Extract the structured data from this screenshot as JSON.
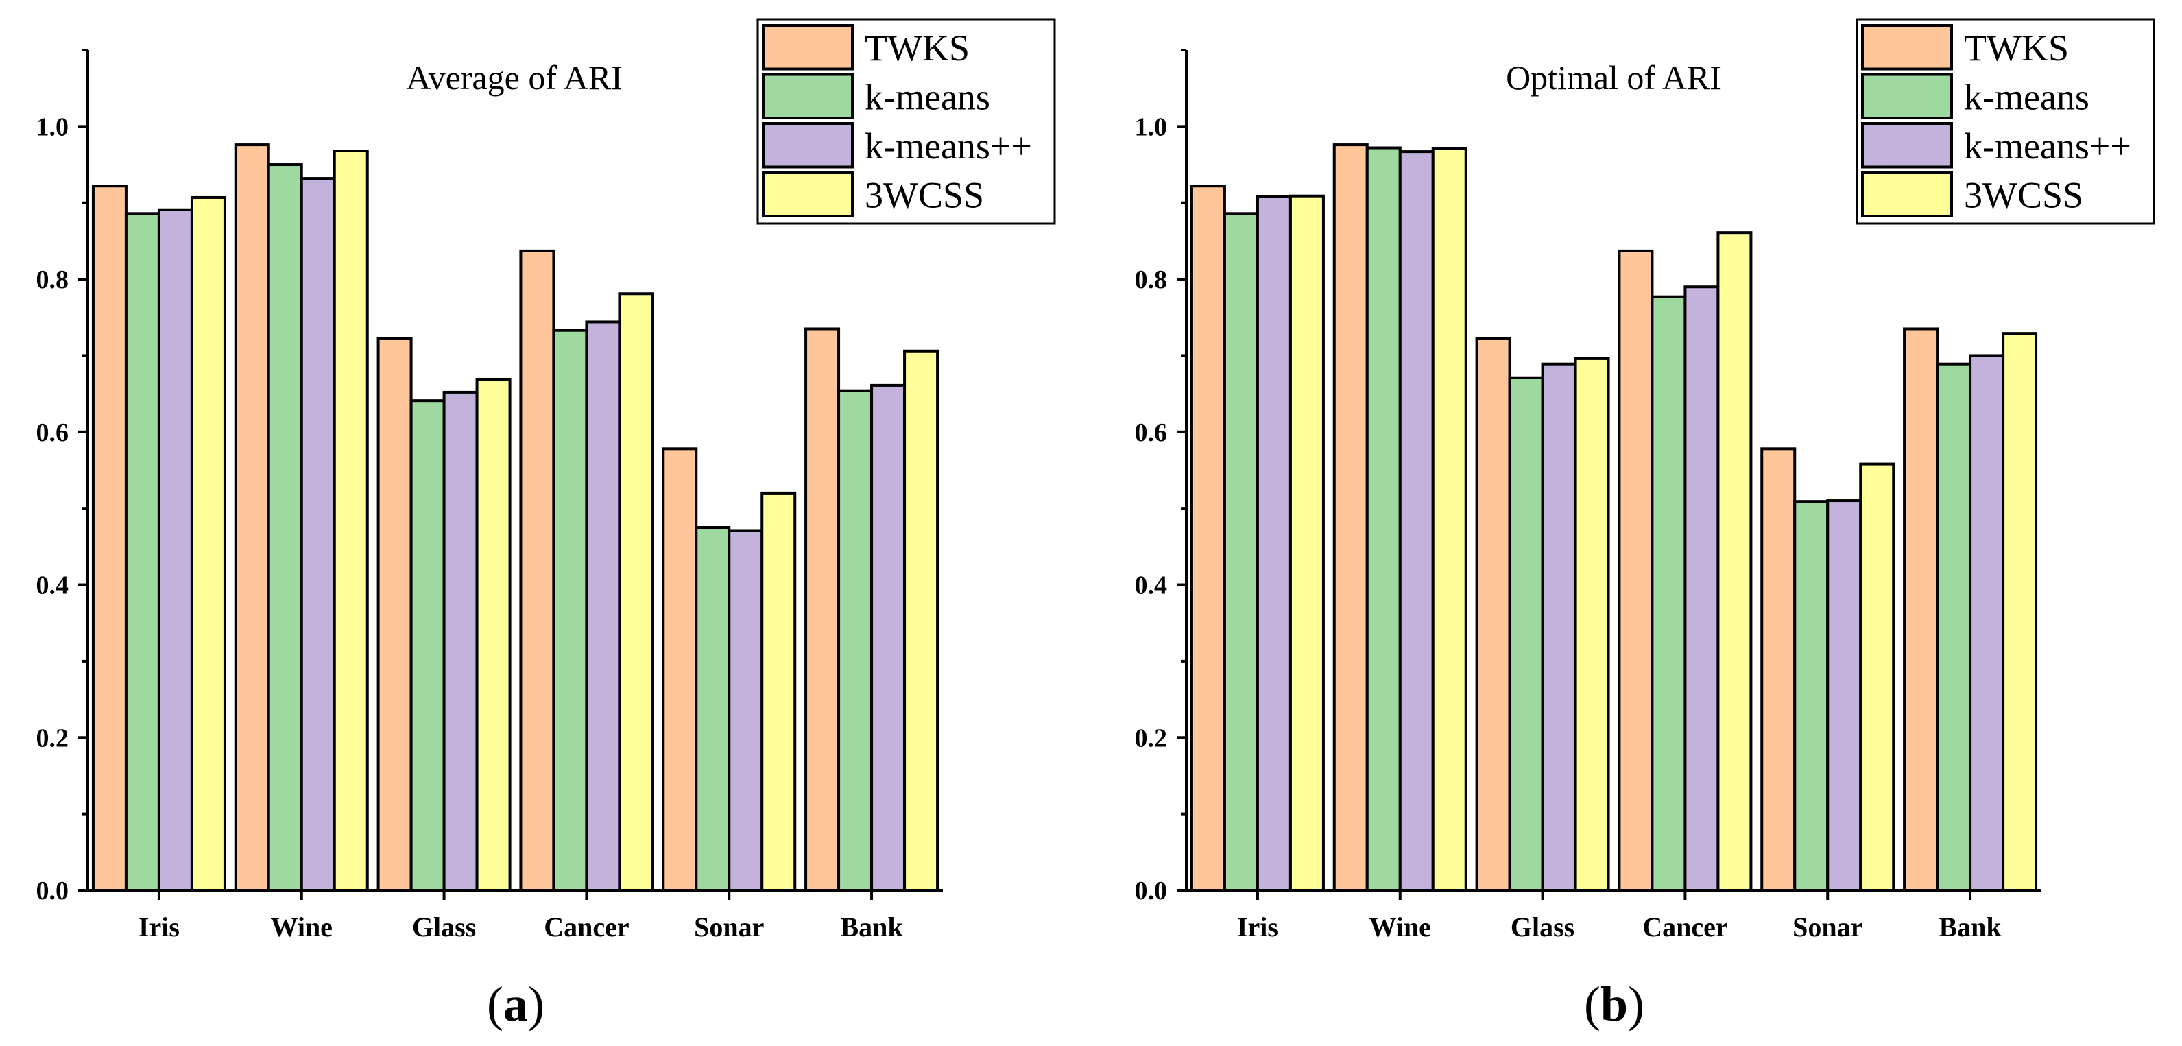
{
  "figure": {
    "captions": [
      "(a)",
      "(b)"
    ]
  },
  "colors": {
    "TWKS": "#FFC799",
    "k-means": "#9ED9A0",
    "k-means++": "#C3B2DB",
    "3WCSS": "#FFFF99",
    "stroke": "#000000"
  },
  "chart_data": [
    {
      "type": "bar",
      "title": "Average of ARI",
      "caption_letter": "a",
      "categories": [
        "Iris",
        "Wine",
        "Glass",
        "Cancer",
        "Sonar",
        "Bank"
      ],
      "series": [
        {
          "name": "TWKS",
          "values": [
            0.922,
            0.976,
            0.722,
            0.837,
            0.578,
            0.735
          ]
        },
        {
          "name": "k-means",
          "values": [
            0.886,
            0.95,
            0.641,
            0.733,
            0.475,
            0.654
          ]
        },
        {
          "name": "k-means++",
          "values": [
            0.891,
            0.932,
            0.652,
            0.744,
            0.471,
            0.661
          ]
        },
        {
          "name": "3WCSS",
          "values": [
            0.907,
            0.968,
            0.669,
            0.781,
            0.52,
            0.706
          ]
        }
      ],
      "xlabel": "",
      "ylabel": "",
      "ylim": [
        0,
        1.1
      ],
      "yticks": [
        "0.0",
        "0.2",
        "0.4",
        "0.6",
        "0.8",
        "1.0"
      ],
      "legend_position": "top-right",
      "grid": false
    },
    {
      "type": "bar",
      "title": "Optimal of ARI",
      "caption_letter": "b",
      "categories": [
        "Iris",
        "Wine",
        "Glass",
        "Cancer",
        "Sonar",
        "Bank"
      ],
      "series": [
        {
          "name": "TWKS",
          "values": [
            0.922,
            0.976,
            0.722,
            0.837,
            0.578,
            0.735
          ]
        },
        {
          "name": "k-means",
          "values": [
            0.886,
            0.972,
            0.671,
            0.777,
            0.509,
            0.689
          ]
        },
        {
          "name": "k-means++",
          "values": [
            0.908,
            0.967,
            0.689,
            0.79,
            0.51,
            0.7
          ]
        },
        {
          "name": "3WCSS",
          "values": [
            0.909,
            0.971,
            0.696,
            0.861,
            0.558,
            0.729
          ]
        }
      ],
      "xlabel": "",
      "ylabel": "",
      "ylim": [
        0,
        1.1
      ],
      "yticks": [
        "0.0",
        "0.2",
        "0.4",
        "0.6",
        "0.8",
        "1.0"
      ],
      "legend_position": "top-right",
      "grid": false
    }
  ]
}
